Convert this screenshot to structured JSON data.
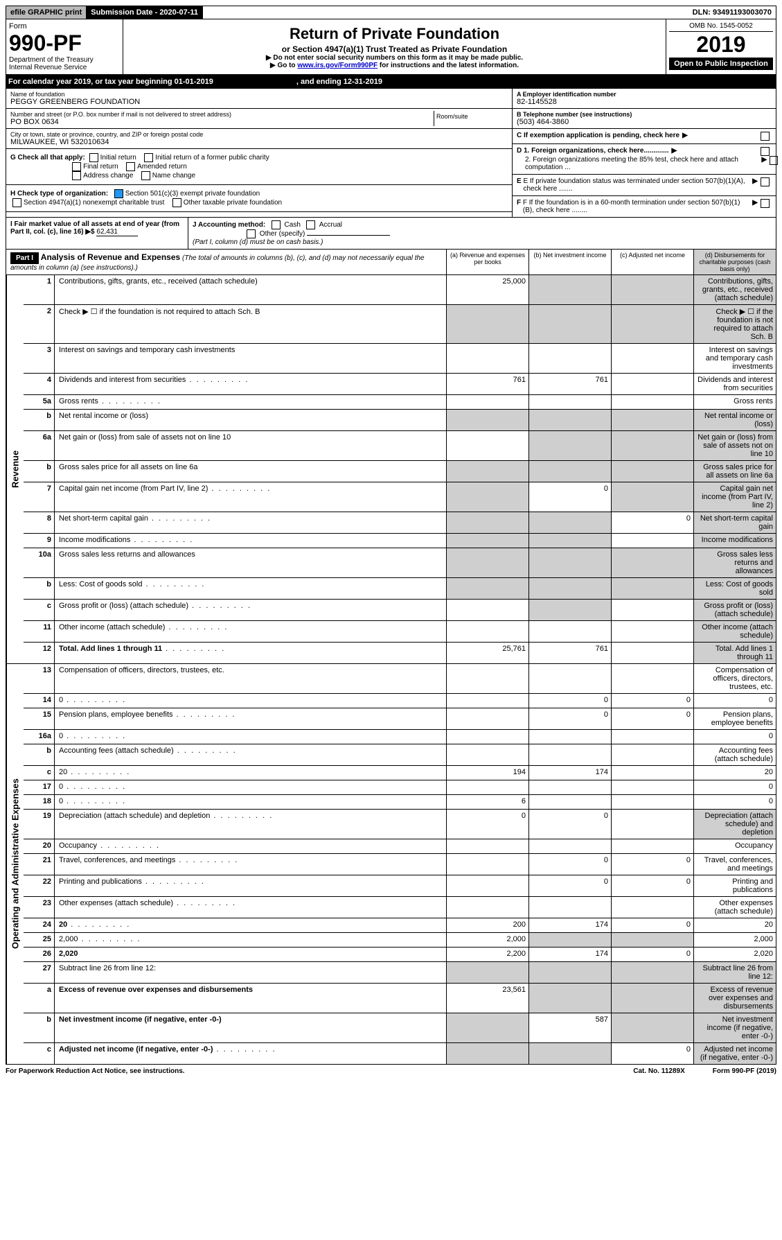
{
  "top": {
    "efile": "efile GRAPHIC print",
    "subLabel": "Submission Date - 2020-07-11",
    "dln": "DLN: 93491193003070"
  },
  "header": {
    "formWord": "Form",
    "formNo": "990-PF",
    "dept1": "Department of the Treasury",
    "dept2": "Internal Revenue Service",
    "title": "Return of Private Foundation",
    "sub": "or Section 4947(a)(1) Trust Treated as Private Foundation",
    "note1": "▶ Do not enter social security numbers on this form as it may be made public.",
    "note2": "▶ Go to ",
    "link": "www.irs.gov/Form990PF",
    "note3": " for instructions and the latest information.",
    "omb": "OMB No. 1545-0052",
    "year": "2019",
    "open": "Open to Public Inspection"
  },
  "cal": {
    "a": "For calendar year 2019, or tax year beginning 01-01-2019",
    "b": ", and ending 12-31-2019"
  },
  "info": {
    "nameLabel": "Name of foundation",
    "name": "PEGGY GREENBERG FOUNDATION",
    "addrLabel": "Number and street (or P.O. box number if mail is not delivered to street address)",
    "addr": "PO BOX 0634",
    "roomLabel": "Room/suite",
    "cityLabel": "City or town, state or province, country, and ZIP or foreign postal code",
    "city": "MILWAUKEE, WI  532010634",
    "einLabel": "A Employer identification number",
    "ein": "82-1145528",
    "telLabel": "B Telephone number (see instructions)",
    "tel": "(503) 464-3860",
    "cLabel": "C If exemption application is pending, check here",
    "d1": "D 1. Foreign organizations, check here.............",
    "d2": "2. Foreign organizations meeting the 85% test, check here and attach computation ...",
    "eLabel": "E  If private foundation status was terminated under section 507(b)(1)(A), check here .......",
    "fLabel": "F  If the foundation is in a 60-month termination under section 507(b)(1)(B), check here ........"
  },
  "g": {
    "label": "G Check all that apply:",
    "o1": "Initial return",
    "o2": "Initial return of a former public charity",
    "o3": "Final return",
    "o4": "Amended return",
    "o5": "Address change",
    "o6": "Name change"
  },
  "h": {
    "label": "H Check type of organization:",
    "o1": "Section 501(c)(3) exempt private foundation",
    "o2": "Section 4947(a)(1) nonexempt charitable trust",
    "o3": "Other taxable private foundation"
  },
  "i": {
    "label": "I Fair market value of all assets at end of year (from Part II, col. (c), line 16) ▶$",
    "val": "62,431"
  },
  "j": {
    "label": "J Accounting method:",
    "o1": "Cash",
    "o2": "Accrual",
    "o3": "Other (specify)",
    "note": "(Part I, column (d) must be on cash basis.)"
  },
  "part1": {
    "hdr": "Part I",
    "title": "Analysis of Revenue and Expenses",
    "titleNote": "(The total of amounts in columns (b), (c), and (d) may not necessarily equal the amounts in column (a) (see instructions).)",
    "colA": "(a)   Revenue and expenses per books",
    "colB": "(b)  Net investment income",
    "colC": "(c)  Adjusted net income",
    "colD": "(d)  Disbursements for charitable purposes (cash basis only)",
    "sideRev": "Revenue",
    "sideExp": "Operating and Administrative Expenses"
  },
  "rows": [
    {
      "n": "1",
      "d": "Contributions, gifts, grants, etc., received (attach schedule)",
      "a": "25,000",
      "bs": true,
      "cs": true,
      "ds": true
    },
    {
      "n": "2",
      "d": "Check ▶ ☐ if the foundation is not required to attach Sch. B",
      "as": true,
      "bs": true,
      "cs": true,
      "ds": true,
      "bold": [
        "not"
      ]
    },
    {
      "n": "3",
      "d": "Interest on savings and temporary cash investments"
    },
    {
      "n": "4",
      "d": "Dividends and interest from securities",
      "a": "761",
      "b": "761",
      "dots": true
    },
    {
      "n": "5a",
      "d": "Gross rents",
      "dots": true
    },
    {
      "n": "b",
      "d": "Net rental income or (loss)",
      "bs": true,
      "cs": true,
      "ds": true,
      "as": true
    },
    {
      "n": "6a",
      "d": "Net gain or (loss) from sale of assets not on line 10",
      "bs": true,
      "cs": true,
      "ds": true
    },
    {
      "n": "b",
      "d": "Gross sales price for all assets on line 6a",
      "as": true,
      "bs": true,
      "cs": true,
      "ds": true
    },
    {
      "n": "7",
      "d": "Capital gain net income (from Part IV, line 2)",
      "b": "0",
      "as": true,
      "cs": true,
      "ds": true,
      "dots": true
    },
    {
      "n": "8",
      "d": "Net short-term capital gain",
      "c": "0",
      "as": true,
      "bs": true,
      "ds": true,
      "dots": true
    },
    {
      "n": "9",
      "d": "Income modifications",
      "as": true,
      "bs": true,
      "ds": true,
      "dots": true
    },
    {
      "n": "10a",
      "d": "Gross sales less returns and allowances",
      "as": true,
      "bs": true,
      "cs": true,
      "ds": true
    },
    {
      "n": "b",
      "d": "Less: Cost of goods sold",
      "as": true,
      "bs": true,
      "cs": true,
      "ds": true,
      "dots": true
    },
    {
      "n": "c",
      "d": "Gross profit or (loss) (attach schedule)",
      "bs": true,
      "ds": true,
      "dots": true
    },
    {
      "n": "11",
      "d": "Other income (attach schedule)",
      "ds": true,
      "dots": true
    },
    {
      "n": "12",
      "d": "Total. Add lines 1 through 11",
      "a": "25,761",
      "b": "761",
      "ds": true,
      "dots": true,
      "boldAll": true
    }
  ],
  "expRows": [
    {
      "n": "13",
      "d": "Compensation of officers, directors, trustees, etc."
    },
    {
      "n": "14",
      "d": "0",
      "b": "0",
      "c": "0",
      "dots": true
    },
    {
      "n": "15",
      "d": "Pension plans, employee benefits",
      "b": "0",
      "c": "0",
      "dots": true
    },
    {
      "n": "16a",
      "d": "0",
      "dots": true
    },
    {
      "n": "b",
      "d": "Accounting fees (attach schedule)",
      "dots": true
    },
    {
      "n": "c",
      "d": "20",
      "a": "194",
      "b": "174",
      "dots": true
    },
    {
      "n": "17",
      "d": "0",
      "dots": true
    },
    {
      "n": "18",
      "d": "0",
      "a": "6",
      "dots": true
    },
    {
      "n": "19",
      "d": "Depreciation (attach schedule) and depletion",
      "a": "0",
      "b": "0",
      "ds": true,
      "dots": true
    },
    {
      "n": "20",
      "d": "Occupancy",
      "dots": true
    },
    {
      "n": "21",
      "d": "Travel, conferences, and meetings",
      "b": "0",
      "c": "0",
      "dots": true
    },
    {
      "n": "22",
      "d": "Printing and publications",
      "b": "0",
      "c": "0",
      "dots": true
    },
    {
      "n": "23",
      "d": "Other expenses (attach schedule)",
      "dots": true
    },
    {
      "n": "24",
      "d": "20",
      "a": "200",
      "b": "174",
      "c": "0",
      "dots": true,
      "boldAll": true
    },
    {
      "n": "25",
      "d": "2,000",
      "a": "2,000",
      "bs": true,
      "cs": true,
      "dots": true
    },
    {
      "n": "26",
      "d": "2,020",
      "a": "2,200",
      "b": "174",
      "c": "0",
      "boldAll": true
    },
    {
      "n": "27",
      "d": "Subtract line 26 from line 12:",
      "as": true,
      "bs": true,
      "cs": true,
      "ds": true
    },
    {
      "n": "a",
      "d": "Excess of revenue over expenses and disbursements",
      "a": "23,561",
      "bs": true,
      "cs": true,
      "ds": true,
      "boldAll": true
    },
    {
      "n": "b",
      "d": "Net investment income (if negative, enter -0-)",
      "b": "587",
      "as": true,
      "cs": true,
      "ds": true,
      "boldAll": true
    },
    {
      "n": "c",
      "d": "Adjusted net income (if negative, enter -0-)",
      "c": "0",
      "as": true,
      "bs": true,
      "ds": true,
      "boldAll": true,
      "dots": true
    }
  ],
  "footer": {
    "a": "For Paperwork Reduction Act Notice, see instructions.",
    "b": "Cat. No. 11289X",
    "c": "Form 990-PF (2019)"
  }
}
